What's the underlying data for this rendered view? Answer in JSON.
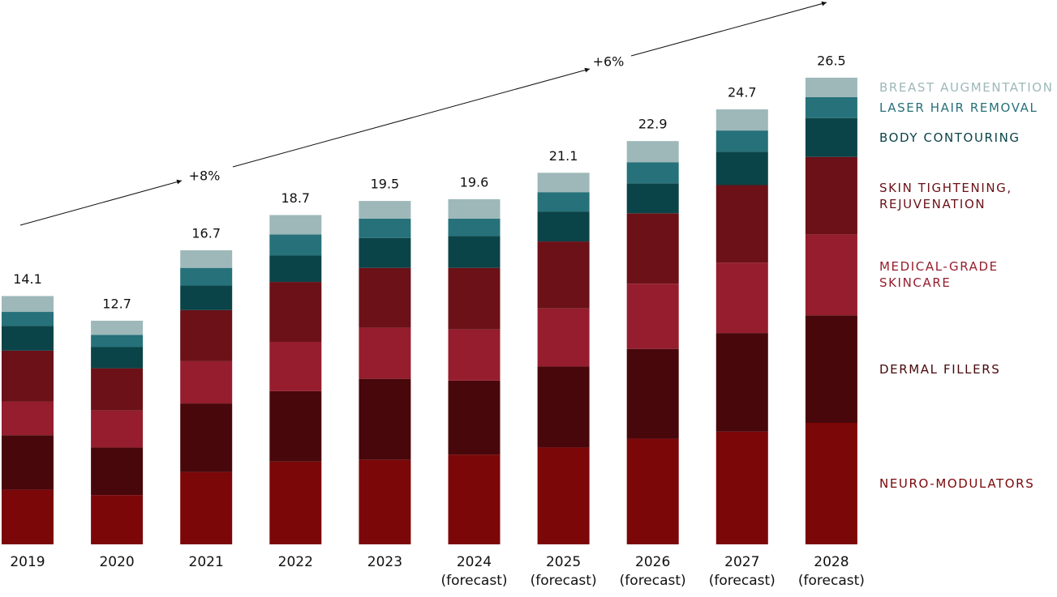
{
  "chart_data": {
    "type": "stacked-bar",
    "categories": [
      "2019",
      "2020",
      "2021",
      "2022",
      "2023",
      "2024\n(forecast)",
      "2025\n(forecast)",
      "2026\n(forecast)",
      "2027\n(forecast)",
      "2028\n(forecast)"
    ],
    "totals": [
      14.1,
      12.7,
      16.7,
      18.7,
      19.5,
      19.6,
      21.1,
      22.9,
      24.7,
      26.5
    ],
    "series": [
      {
        "name": "NEURO-MODULATORS",
        "color": "#7b0709",
        "values": [
          3.1,
          2.8,
          4.1,
          4.7,
          4.8,
          5.1,
          5.5,
          6.0,
          6.4,
          6.9
        ]
      },
      {
        "name": "DERMAL FILLERS",
        "color": "#48070b",
        "values": [
          3.1,
          2.7,
          3.9,
          4.0,
          4.6,
          4.2,
          4.6,
          5.1,
          5.6,
          6.1
        ]
      },
      {
        "name": "MEDICAL-GRADE\nSKINCARE",
        "color": "#951d2d",
        "values": [
          1.9,
          2.1,
          2.4,
          2.8,
          2.9,
          2.9,
          3.3,
          3.7,
          4.0,
          4.6
        ]
      },
      {
        "name": "SKIN TIGHTENING,\nREJUVENATION",
        "color": "#6b1117",
        "values": [
          2.9,
          2.4,
          2.9,
          3.4,
          3.4,
          3.5,
          3.8,
          4.0,
          4.4,
          4.4
        ]
      },
      {
        "name": "BODY CONTOURING",
        "color": "#0b4448",
        "values": [
          1.4,
          1.2,
          1.4,
          1.5,
          1.7,
          1.8,
          1.7,
          1.7,
          1.9,
          2.2
        ]
      },
      {
        "name": "LASER HAIR REMOVAL",
        "color": "#26717a",
        "values": [
          0.8,
          0.7,
          1.0,
          1.2,
          1.1,
          1.0,
          1.1,
          1.2,
          1.2,
          1.2
        ]
      },
      {
        "name": "BREAST AUGMENTATION",
        "color": "#9eb8b9",
        "values": [
          0.9,
          0.8,
          1.0,
          1.1,
          1.0,
          1.1,
          1.1,
          1.2,
          1.2,
          1.1
        ]
      }
    ],
    "annotations": [
      "+8%",
      "+6%"
    ]
  }
}
